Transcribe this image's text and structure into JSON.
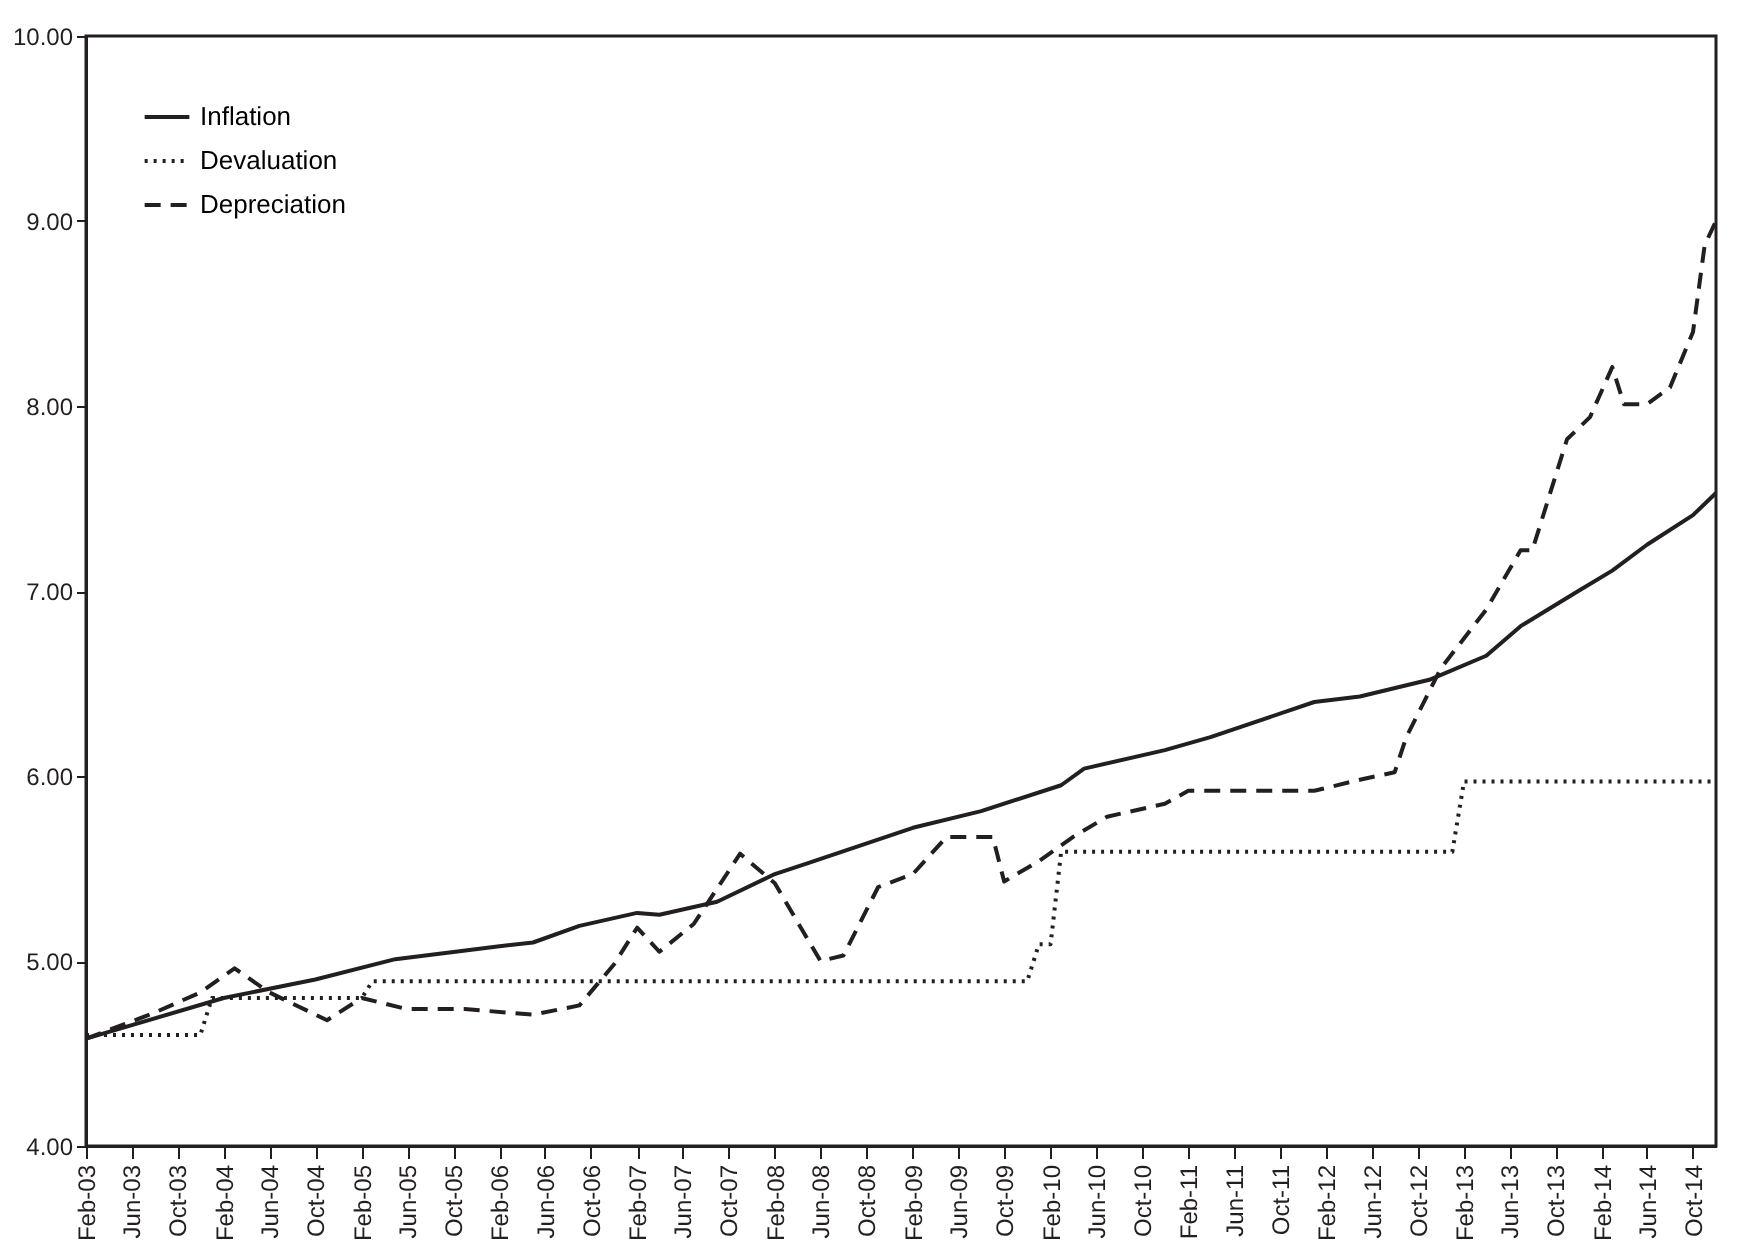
{
  "chart_data": {
    "type": "line",
    "xlim": [
      "2003-02",
      "2014-12"
    ],
    "xticks": [
      {
        "value": "2003-02",
        "label": "Feb-03"
      },
      {
        "value": "2003-06",
        "label": "Jun-03"
      },
      {
        "value": "2003-10",
        "label": "Oct-03"
      },
      {
        "value": "2004-02",
        "label": "Feb-04"
      },
      {
        "value": "2004-06",
        "label": "Jun-04"
      },
      {
        "value": "2004-10",
        "label": "Oct-04"
      },
      {
        "value": "2005-02",
        "label": "Feb-05"
      },
      {
        "value": "2005-06",
        "label": "Jun-05"
      },
      {
        "value": "2005-10",
        "label": "Oct-05"
      },
      {
        "value": "2006-02",
        "label": "Feb-06"
      },
      {
        "value": "2006-06",
        "label": "Jun-06"
      },
      {
        "value": "2006-10",
        "label": "Oct-06"
      },
      {
        "value": "2007-02",
        "label": "Feb-07"
      },
      {
        "value": "2007-06",
        "label": "Jun-07"
      },
      {
        "value": "2007-10",
        "label": "Oct-07"
      },
      {
        "value": "2008-02",
        "label": "Feb-08"
      },
      {
        "value": "2008-06",
        "label": "Jun-08"
      },
      {
        "value": "2008-10",
        "label": "Oct-08"
      },
      {
        "value": "2009-02",
        "label": "Feb-09"
      },
      {
        "value": "2009-06",
        "label": "Jun-09"
      },
      {
        "value": "2009-10",
        "label": "Oct-09"
      },
      {
        "value": "2010-02",
        "label": "Feb-10"
      },
      {
        "value": "2010-06",
        "label": "Jun-10"
      },
      {
        "value": "2010-10",
        "label": "Oct-10"
      },
      {
        "value": "2011-02",
        "label": "Feb-11"
      },
      {
        "value": "2011-06",
        "label": "Jun-11"
      },
      {
        "value": "2011-10",
        "label": "Oct-11"
      },
      {
        "value": "2012-02",
        "label": "Feb-12"
      },
      {
        "value": "2012-06",
        "label": "Jun-12"
      },
      {
        "value": "2012-10",
        "label": "Oct-12"
      },
      {
        "value": "2013-02",
        "label": "Feb-13"
      },
      {
        "value": "2013-06",
        "label": "Jun-13"
      },
      {
        "value": "2013-10",
        "label": "Oct-13"
      },
      {
        "value": "2014-02",
        "label": "Feb-14"
      },
      {
        "value": "2014-06",
        "label": "Jun-14"
      },
      {
        "value": "2014-10",
        "label": "Oct-14"
      }
    ],
    "ylim": [
      4,
      10
    ],
    "yticks": [
      {
        "value": 4,
        "label": "4.00"
      },
      {
        "value": 5,
        "label": "5.00"
      },
      {
        "value": 6,
        "label": "6.00"
      },
      {
        "value": 7,
        "label": "7.00"
      },
      {
        "value": 8,
        "label": "8.00"
      },
      {
        "value": 9,
        "label": "9.00"
      },
      {
        "value": 10,
        "label": "10.00"
      }
    ],
    "grid": false,
    "legend": "top left",
    "marker": "none",
    "series": [
      {
        "name": "Inflation",
        "color": "#231f20",
        "line_style": "solid",
        "x": [
          "2003-02",
          "2004-02",
          "2004-10",
          "2005-05",
          "2006-02",
          "2006-05",
          "2006-09",
          "2007-02",
          "2007-04",
          "2007-09",
          "2008-02",
          "2008-05",
          "2009-02",
          "2009-08",
          "2010-03",
          "2010-05",
          "2010-12",
          "2011-04",
          "2012-01",
          "2012-05",
          "2012-11",
          "2013-04",
          "2013-07",
          "2013-12",
          "2014-03",
          "2014-06",
          "2014-10",
          "2014-12"
        ],
        "values": [
          4.58,
          4.8,
          4.9,
          5.01,
          5.08,
          5.1,
          5.19,
          5.26,
          5.25,
          5.32,
          5.47,
          5.53,
          5.72,
          5.81,
          5.95,
          6.04,
          6.14,
          6.21,
          6.4,
          6.43,
          6.52,
          6.65,
          6.81,
          7.0,
          7.11,
          7.25,
          7.41,
          7.53
        ]
      },
      {
        "name": "Devaluation",
        "color": "#231f20",
        "line_style": "dotted",
        "x": [
          "2003-02",
          "2003-12",
          "2004-01",
          "2005-02",
          "2005-03",
          "2009-12",
          "2010-01",
          "2010-02",
          "2010-03",
          "2013-01",
          "2013-02",
          "2014-12"
        ],
        "values": [
          4.6,
          4.6,
          4.8,
          4.8,
          4.89,
          4.89,
          5.09,
          5.09,
          5.59,
          5.59,
          5.97,
          5.97
        ]
      },
      {
        "name": "Depreciation",
        "color": "#231f20",
        "line_style": "dashed",
        "x": [
          "2003-02",
          "2003-08",
          "2003-12",
          "2004-03",
          "2004-06",
          "2004-11",
          "2005-02",
          "2005-06",
          "2005-11",
          "2006-05",
          "2006-09",
          "2006-12",
          "2007-02",
          "2007-04",
          "2007-07",
          "2007-11",
          "2008-02",
          "2008-06",
          "2008-08",
          "2008-11",
          "2009-02",
          "2009-05",
          "2009-09",
          "2009-10",
          "2010-01",
          "2010-04",
          "2010-07",
          "2010-12",
          "2011-02",
          "2012-01",
          "2012-05",
          "2012-08",
          "2012-09",
          "2012-12",
          "2013-04",
          "2013-07",
          "2013-08",
          "2013-11",
          "2014-01",
          "2014-03",
          "2014-04",
          "2014-06",
          "2014-08",
          "2014-10",
          "2014-11",
          "2014-12"
        ],
        "values": [
          4.58,
          4.72,
          4.83,
          4.96,
          4.83,
          4.68,
          4.8,
          4.74,
          4.74,
          4.71,
          4.76,
          4.98,
          5.18,
          5.05,
          5.2,
          5.58,
          5.42,
          5.0,
          5.03,
          5.4,
          5.47,
          5.67,
          5.67,
          5.43,
          5.54,
          5.67,
          5.78,
          5.85,
          5.92,
          5.92,
          5.98,
          6.02,
          6.21,
          6.58,
          6.9,
          7.22,
          7.22,
          7.82,
          7.94,
          8.21,
          8.01,
          8.01,
          8.1,
          8.4,
          8.87,
          9.0
        ]
      }
    ]
  }
}
